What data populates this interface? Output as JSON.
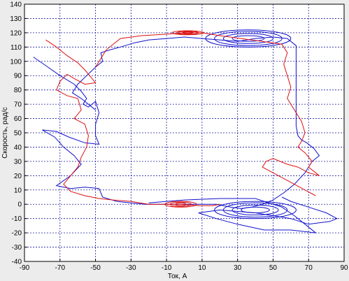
{
  "chart_data": {
    "type": "line",
    "xlabel": "Ток, А",
    "ylabel": "Скорость, рад/с",
    "xlim": [
      -90,
      90
    ],
    "ylim": [
      -40,
      140
    ],
    "xticks": [
      -90,
      -70,
      -50,
      -30,
      -10,
      10,
      30,
      50,
      70,
      90
    ],
    "yticks": [
      -40,
      -30,
      -20,
      -10,
      0,
      10,
      20,
      30,
      40,
      50,
      60,
      70,
      80,
      90,
      100,
      110,
      120,
      130,
      140
    ],
    "grid": true,
    "colors": {
      "series_1": "#1010cc",
      "series_2": "#dd1111",
      "grid": "#1a1a9a",
      "plot_bg": "#ffffff"
    },
    "series": [
      {
        "color": "#1010cc",
        "points": [
          [
            -85,
            103
          ],
          [
            -78,
            97
          ],
          [
            -70,
            90
          ],
          [
            -62,
            84
          ],
          [
            -58,
            79
          ],
          [
            -55,
            74
          ],
          [
            -57,
            70
          ],
          [
            -54,
            68
          ],
          [
            -50,
            72
          ],
          [
            -48,
            64
          ],
          [
            -50,
            56
          ],
          [
            -50,
            48
          ],
          [
            -48,
            42
          ],
          [
            -56,
            43
          ],
          [
            -65,
            47
          ],
          [
            -72,
            51
          ],
          [
            -80,
            52
          ],
          [
            -73,
            47
          ],
          [
            -68,
            40
          ],
          [
            -62,
            34
          ],
          [
            -58,
            28
          ],
          [
            -64,
            20
          ],
          [
            -72,
            13
          ],
          [
            -64,
            11
          ],
          [
            -56,
            12
          ],
          [
            -48,
            11
          ],
          [
            -46,
            5
          ],
          [
            -38,
            2
          ],
          [
            -30,
            1
          ],
          [
            -22,
            0
          ],
          [
            -12,
            0
          ],
          [
            -2,
            0
          ],
          [
            8,
            0
          ],
          [
            18,
            0
          ],
          [
            26,
            -2
          ],
          [
            32,
            -3
          ],
          [
            38,
            -2
          ],
          [
            44,
            0
          ],
          [
            50,
            3
          ],
          [
            56,
            8
          ],
          [
            62,
            14
          ],
          [
            68,
            22
          ],
          [
            72,
            30
          ],
          [
            76,
            34
          ],
          [
            73,
            39
          ],
          [
            69,
            43
          ],
          [
            66,
            45
          ],
          [
            64,
            48
          ],
          [
            63,
            55
          ],
          [
            63,
            65
          ],
          [
            63,
            80
          ],
          [
            63,
            95
          ],
          [
            63,
            105
          ],
          [
            63,
            111
          ],
          [
            58,
            116
          ],
          [
            50,
            117
          ],
          [
            40,
            116
          ],
          [
            30,
            114
          ],
          [
            20,
            115
          ],
          [
            10,
            116
          ],
          [
            0,
            117
          ],
          [
            -10,
            116
          ],
          [
            -20,
            115
          ],
          [
            -28,
            113
          ],
          [
            -36,
            110
          ],
          [
            -42,
            108
          ],
          [
            -47,
            106
          ],
          [
            -46,
            100
          ],
          [
            -50,
            96
          ],
          [
            -55,
            90
          ],
          [
            -60,
            84
          ],
          [
            -63,
            78
          ],
          [
            -58,
            74
          ],
          [
            -54,
            70
          ],
          [
            -50,
            66
          ]
        ],
        "loops": [
          {
            "center": [
              36,
              116
            ],
            "radii_x": [
              9,
              14,
              19,
              24
            ],
            "radii_y": [
              2,
              3.5,
              5,
              6
            ]
          },
          {
            "center": [
              40,
              -4
            ],
            "radii_x": [
              8,
              13,
              18,
              23
            ],
            "radii_y": [
              2,
              3.5,
              5,
              6
            ]
          }
        ],
        "extra_path": [
          [
            -20,
            1
          ],
          [
            0,
            3
          ],
          [
            20,
            4
          ],
          [
            40,
            4
          ],
          [
            55,
            -2
          ],
          [
            62,
            -8
          ],
          [
            68,
            -14
          ],
          [
            74,
            -20
          ],
          [
            60,
            -18
          ],
          [
            45,
            -18
          ],
          [
            30,
            -14
          ],
          [
            18,
            -10
          ],
          [
            8,
            -6
          ],
          [
            20,
            -4
          ],
          [
            40,
            -6
          ],
          [
            60,
            -10
          ],
          [
            70,
            -14
          ],
          [
            82,
            -12
          ],
          [
            86,
            -10
          ],
          [
            80,
            -6
          ],
          [
            70,
            -2
          ],
          [
            60,
            2
          ],
          [
            55,
            5
          ]
        ]
      },
      {
        "color": "#dd1111",
        "points": [
          [
            -78,
            115
          ],
          [
            -72,
            110
          ],
          [
            -66,
            104
          ],
          [
            -60,
            99
          ],
          [
            -56,
            94
          ],
          [
            -52,
            88
          ],
          [
            -50,
            85
          ],
          [
            -56,
            84
          ],
          [
            -62,
            88
          ],
          [
            -66,
            91
          ],
          [
            -70,
            86
          ],
          [
            -72,
            80
          ],
          [
            -66,
            76
          ],
          [
            -60,
            74
          ],
          [
            -58,
            66
          ],
          [
            -62,
            60
          ],
          [
            -56,
            56
          ],
          [
            -54,
            48
          ],
          [
            -55,
            40
          ],
          [
            -58,
            33
          ],
          [
            -60,
            26
          ],
          [
            -64,
            20
          ],
          [
            -68,
            14
          ],
          [
            -64,
            9
          ],
          [
            -56,
            6
          ],
          [
            -48,
            4
          ],
          [
            -40,
            3
          ],
          [
            -30,
            2
          ],
          [
            -20,
            0
          ],
          [
            -12,
            0
          ],
          [
            -2,
            0
          ],
          [
            8,
            -1
          ],
          [
            16,
            -1
          ],
          [
            20,
            0
          ]
        ],
        "loops": [
          {
            "center": [
              -2,
              0
            ],
            "radii_x": [
              3,
              6,
              9
            ],
            "radii_y": [
              1,
              1.5,
              2
            ]
          },
          {
            "center": [
              2,
              120
            ],
            "radii_x": [
              3,
              6,
              9
            ],
            "radii_y": [
              0.6,
              1,
              1.4
            ]
          }
        ],
        "extra_path": [
          [
            -50,
            96
          ],
          [
            -44,
            108
          ],
          [
            -36,
            116
          ],
          [
            -24,
            118
          ],
          [
            -10,
            119
          ],
          [
            0,
            120
          ],
          [
            10,
            120
          ],
          [
            20,
            118
          ],
          [
            55,
            112
          ],
          [
            58,
            106
          ],
          [
            56,
            98
          ],
          [
            58,
            90
          ],
          [
            60,
            82
          ],
          [
            58,
            74
          ],
          [
            62,
            66
          ],
          [
            66,
            58
          ],
          [
            68,
            50
          ],
          [
            66,
            44
          ],
          [
            64,
            40
          ],
          [
            68,
            36
          ],
          [
            72,
            30
          ],
          [
            70,
            26
          ],
          [
            74,
            22
          ],
          [
            76,
            20
          ],
          [
            70,
            22
          ],
          [
            64,
            26
          ],
          [
            58,
            28
          ],
          [
            54,
            30
          ],
          [
            50,
            32
          ],
          [
            46,
            30
          ],
          [
            44,
            26
          ],
          [
            50,
            22
          ],
          [
            56,
            18
          ],
          [
            62,
            14
          ],
          [
            68,
            10
          ],
          [
            74,
            6
          ]
        ]
      }
    ]
  }
}
